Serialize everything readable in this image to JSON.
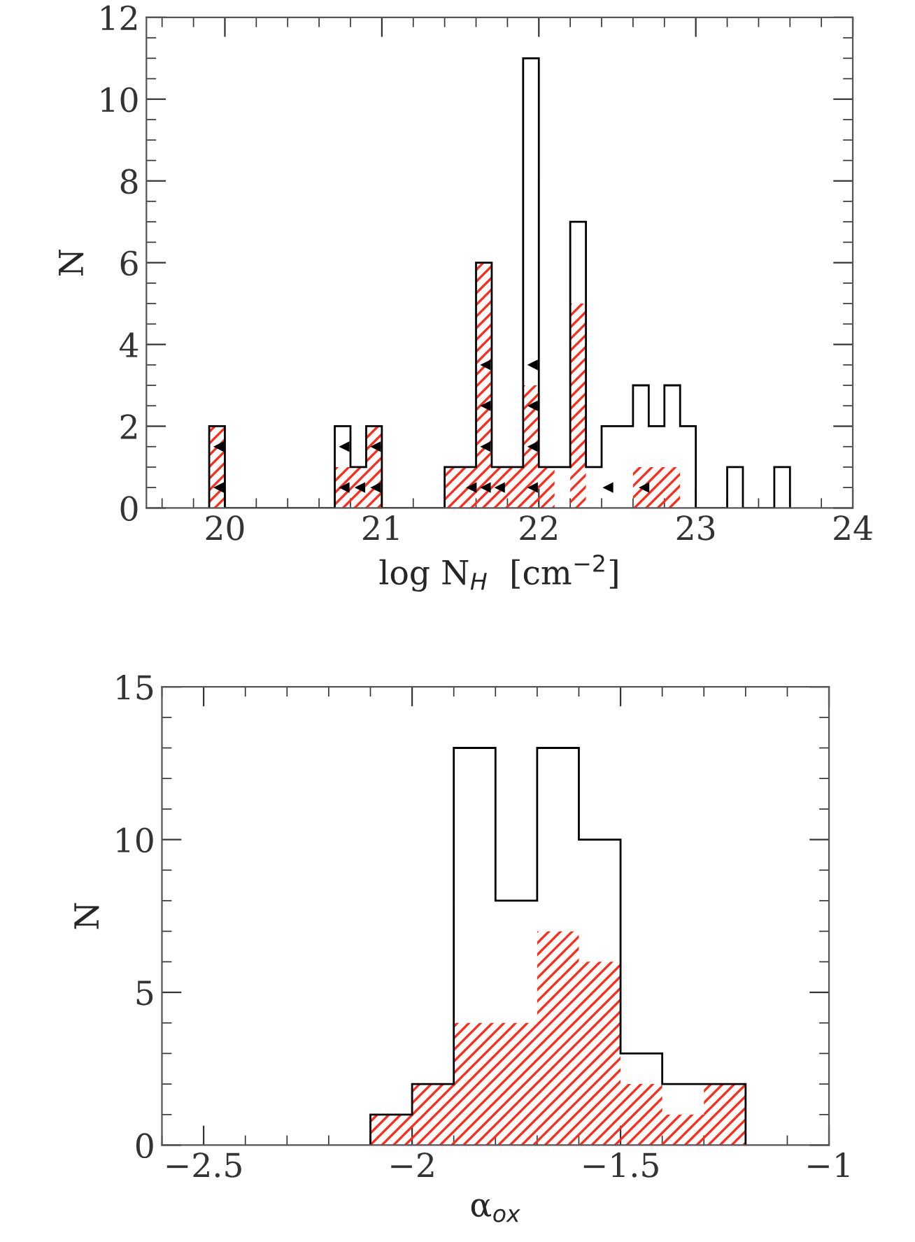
{
  "chart_data": [
    {
      "type": "histogram",
      "xlabel": "log N$_{H}$  [cm$^{−2}$]",
      "ylabel": "N",
      "bins": [
        19.9,
        20.0,
        20.1,
        20.2,
        20.3,
        20.4,
        20.5,
        20.6,
        20.7,
        20.8,
        20.9,
        21.0,
        21.1,
        21.2,
        21.3,
        21.4,
        21.5,
        21.6,
        21.7,
        21.8,
        21.9,
        22.0,
        22.1,
        22.2,
        22.3,
        22.4,
        22.5,
        22.6,
        22.7,
        22.8,
        22.9,
        23.0,
        23.1,
        23.2,
        23.3,
        23.4,
        23.5,
        23.6
      ],
      "series": [
        {
          "color": "#000000",
          "values": [
            2,
            0,
            0,
            0,
            0,
            0,
            0,
            0,
            2,
            1,
            2,
            0,
            0,
            0,
            0,
            1,
            1,
            6,
            1,
            1,
            11,
            1,
            1,
            7,
            1,
            2,
            2,
            3,
            2,
            3,
            2,
            0,
            0,
            1,
            0,
            0,
            1
          ]
        },
        {
          "color": "#ff2a1a",
          "values": [
            2,
            0,
            0,
            0,
            0,
            0,
            0,
            0,
            1,
            1,
            2,
            0,
            0,
            0,
            0,
            1,
            1,
            6,
            1,
            1,
            3,
            1,
            0,
            5,
            0,
            0,
            0,
            1,
            1,
            1,
            0,
            0,
            0,
            0,
            0,
            0,
            0
          ]
        },
        {
          "type": "scatter",
          "color": "#000000",
          "marker": "triangle",
          "x": [
            19.96,
            19.96,
            20.76,
            20.76,
            20.86,
            20.96,
            20.96,
            21.57,
            21.66,
            21.66,
            21.66,
            21.66,
            21.75,
            21.96,
            21.96,
            21.96,
            21.96,
            22.44,
            22.67
          ],
          "values": [
            1.5,
            0.5,
            1.5,
            0.5,
            0.5,
            1.5,
            0.5,
            0.5,
            0.5,
            1.5,
            2.5,
            3.5,
            0.5,
            0.5,
            1.5,
            2.5,
            3.5,
            0.5,
            0.5
          ]
        }
      ],
      "xlim": [
        19.5,
        24
      ],
      "xticks": [
        20,
        21,
        22,
        23,
        24
      ],
      "ylim": [
        0,
        12
      ],
      "yticks": [
        0,
        2,
        4,
        6,
        8,
        10,
        12
      ]
    },
    {
      "type": "histogram",
      "xlabel": "α$_{ox}$",
      "ylabel": "N",
      "bins": [
        -2.1,
        -2.0,
        -1.9,
        -1.8,
        -1.7,
        -1.6,
        -1.5,
        -1.4,
        -1.3,
        -1.2
      ],
      "series": [
        {
          "color": "#000000",
          "values": [
            1,
            2,
            13,
            8,
            13,
            10,
            3,
            2,
            2
          ]
        },
        {
          "color": "#ff2a1a",
          "values": [
            1,
            2,
            4,
            4,
            7,
            6,
            2,
            1,
            2
          ]
        }
      ],
      "xlim": [
        -2.6,
        -1
      ],
      "xticks": [
        {
          "value": -2.5,
          "label": "−2.5"
        },
        {
          "value": -2,
          "label": "−2"
        },
        {
          "value": -1.5,
          "label": "−1.5"
        },
        {
          "value": -1,
          "label": "−1"
        }
      ],
      "ylim": [
        0,
        15
      ],
      "yticks": [
        0,
        5,
        10,
        15
      ]
    }
  ]
}
